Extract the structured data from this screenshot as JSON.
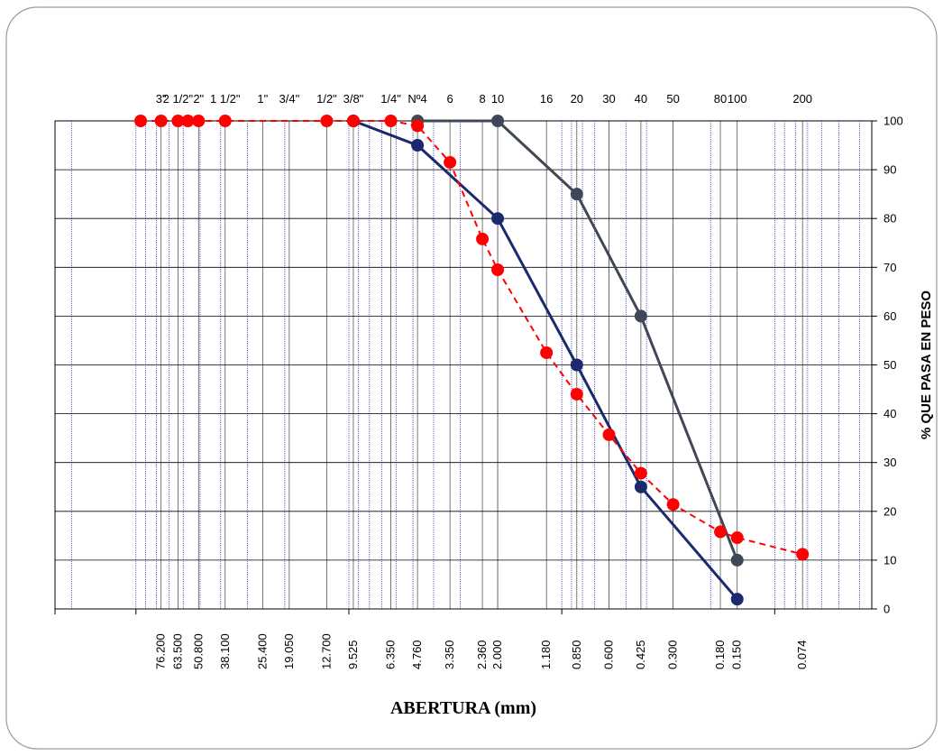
{
  "chart_data": {
    "type": "line",
    "x_scale": "log",
    "x_reversed": true,
    "xlim": [
      0.035,
      240
    ],
    "ylim": [
      0,
      100
    ],
    "xlabel": "ABERTURA (mm)",
    "ylabel": "% QUE PASA EN PESO",
    "grid": true,
    "y_ticks": [
      0,
      10,
      20,
      30,
      40,
      50,
      60,
      70,
      80,
      90,
      100
    ],
    "sieves": [
      {
        "name": "3\"",
        "mm": 76.2,
        "label": "76.200"
      },
      {
        "name": "2 1/2\"",
        "mm": 63.5,
        "label": "63.500"
      },
      {
        "name": "2\"",
        "mm": 50.8,
        "label": "50.800"
      },
      {
        "name": "1 1/2\"",
        "mm": 38.1,
        "label": "38.100"
      },
      {
        "name": "1\"",
        "mm": 25.4,
        "label": "25.400"
      },
      {
        "name": "3/4\"",
        "mm": 19.05,
        "label": "19.050"
      },
      {
        "name": "1/2\"",
        "mm": 12.7,
        "label": "12.700"
      },
      {
        "name": "3/8\"",
        "mm": 9.525,
        "label": "9.525"
      },
      {
        "name": "1/4\"",
        "mm": 6.35,
        "label": "6.350"
      },
      {
        "name": "Nº4",
        "mm": 4.76,
        "label": "4.760"
      },
      {
        "name": "6",
        "mm": 3.35,
        "label": "3.350"
      },
      {
        "name": "8",
        "mm": 2.36,
        "label": "2.360"
      },
      {
        "name": "10",
        "mm": 2.0,
        "label": "2.000"
      },
      {
        "name": "16",
        "mm": 1.18,
        "label": "1.180"
      },
      {
        "name": "20",
        "mm": 0.85,
        "label": "0.850"
      },
      {
        "name": "30",
        "mm": 0.6,
        "label": "0.600"
      },
      {
        "name": "40",
        "mm": 0.425,
        "label": "0.425"
      },
      {
        "name": "50",
        "mm": 0.3,
        "label": "0.300"
      },
      {
        "name": "80",
        "mm": 0.18,
        "label": "0.180"
      },
      {
        "name": "100",
        "mm": 0.15,
        "label": "0.150"
      },
      {
        "name": "200",
        "mm": 0.074,
        "label": "0.074"
      }
    ],
    "series": [
      {
        "color": "#1a2a6c",
        "dash": false,
        "x": [
          9.525,
          4.76,
          2.0,
          0.85,
          0.425,
          0.15
        ],
        "y": [
          100,
          95,
          80,
          50,
          25,
          2
        ]
      },
      {
        "color": "#404858",
        "dash": false,
        "x": [
          4.76,
          2.0,
          0.85,
          0.425,
          0.15
        ],
        "y": [
          100,
          100,
          85,
          60,
          10
        ]
      },
      {
        "color": "#ff0000",
        "dash": true,
        "x": [
          95,
          76.2,
          63.5,
          57,
          50.8,
          38.1,
          12.7,
          9.525,
          6.35,
          4.76,
          3.35,
          2.36,
          2.0,
          1.18,
          0.85,
          0.6,
          0.425,
          0.3,
          0.18,
          0.15,
          0.074
        ],
        "y": [
          100,
          100,
          100,
          100,
          100,
          100,
          100,
          100,
          100,
          99,
          91.5,
          75.8,
          69.5,
          52.5,
          44,
          35.7,
          27.8,
          21.4,
          15.8,
          14.6,
          11.2
        ]
      }
    ]
  },
  "colors": {
    "major_grid": "#404040",
    "minor_grid": "#0000cc",
    "frame_border": "#9a9a9a"
  }
}
